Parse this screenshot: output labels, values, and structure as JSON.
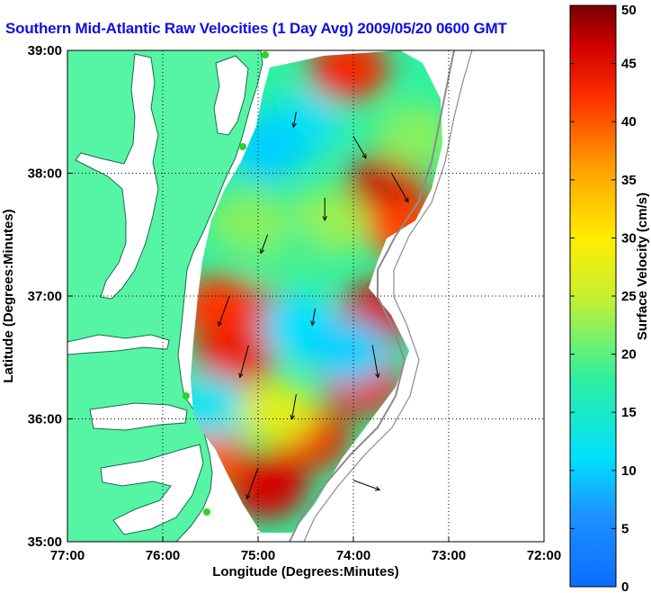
{
  "title": "Southern Mid-Atlantic Raw Velocities (1 Day Avg) 2009/05/20 0600 GMT",
  "colors": {
    "land": "#56f5a6",
    "title": "#1010e0"
  },
  "map": {
    "xlabel": "Longitude (Degrees:Minutes)",
    "ylabel": "Latitude (Degrees:Minutes)",
    "lon_range": [
      -77,
      -72
    ],
    "lat_range": [
      35,
      39
    ],
    "x_ticks": [
      {
        "value": -77,
        "label": "77:00"
      },
      {
        "value": -76,
        "label": "76:00"
      },
      {
        "value": -75,
        "label": "75:00"
      },
      {
        "value": -74,
        "label": "74:00"
      },
      {
        "value": -73,
        "label": "73:00"
      },
      {
        "value": -72,
        "label": "72:00"
      }
    ],
    "y_ticks": [
      {
        "value": 35,
        "label": "35:00"
      },
      {
        "value": 36,
        "label": "36:00"
      },
      {
        "value": 37,
        "label": "37:00"
      },
      {
        "value": 38,
        "label": "38:00"
      },
      {
        "value": 39,
        "label": "39:00"
      }
    ],
    "grid": true
  },
  "colorbar": {
    "label": "Surface Velocity (cm/s)",
    "range": [
      0,
      50
    ],
    "ticks": [
      {
        "value": 0,
        "label": "0"
      },
      {
        "value": 5,
        "label": "5"
      },
      {
        "value": 10,
        "label": "10"
      },
      {
        "value": 15,
        "label": "15"
      },
      {
        "value": 20,
        "label": "20"
      },
      {
        "value": 25,
        "label": "25"
      },
      {
        "value": 30,
        "label": "30"
      },
      {
        "value": 35,
        "label": "35"
      },
      {
        "value": 40,
        "label": "40"
      },
      {
        "value": 45,
        "label": "45"
      },
      {
        "value": 50,
        "label": "50"
      }
    ]
  },
  "field": {
    "blobs": [
      {
        "lon": -75.05,
        "lat": 36.8,
        "speed": 47
      },
      {
        "lon": -75.4,
        "lat": 36.9,
        "speed": 42
      },
      {
        "lon": -75.25,
        "lat": 36.5,
        "speed": 44
      },
      {
        "lon": -73.65,
        "lat": 37.9,
        "speed": 47
      },
      {
        "lon": -73.45,
        "lat": 37.55,
        "speed": 41
      },
      {
        "lon": -74.05,
        "lat": 38.85,
        "speed": 43
      },
      {
        "lon": -73.75,
        "lat": 36.85,
        "speed": 46
      },
      {
        "lon": -73.9,
        "lat": 36.3,
        "speed": 44
      },
      {
        "lon": -74.45,
        "lat": 35.85,
        "speed": 44
      },
      {
        "lon": -74.9,
        "lat": 35.45,
        "speed": 46
      },
      {
        "lon": -75.55,
        "lat": 35.7,
        "speed": 40
      },
      {
        "lon": -74.55,
        "lat": 38.4,
        "speed": 12
      },
      {
        "lon": -74.9,
        "lat": 38.2,
        "speed": 10
      },
      {
        "lon": -74.25,
        "lat": 37.6,
        "speed": 23
      },
      {
        "lon": -74.7,
        "lat": 37.35,
        "speed": 19
      },
      {
        "lon": -74.55,
        "lat": 36.75,
        "speed": 11
      },
      {
        "lon": -74.05,
        "lat": 36.55,
        "speed": 10
      },
      {
        "lon": -75.5,
        "lat": 36.1,
        "speed": 12
      },
      {
        "lon": -74.8,
        "lat": 36.05,
        "speed": 27
      },
      {
        "lon": -75.1,
        "lat": 37.6,
        "speed": 22
      },
      {
        "lon": -73.35,
        "lat": 38.3,
        "speed": 22
      }
    ],
    "vectors": [
      {
        "lon": -74.6,
        "lat": 38.5,
        "dir": 190,
        "speed": 12
      },
      {
        "lon": -74.0,
        "lat": 38.3,
        "dir": 150,
        "speed": 30
      },
      {
        "lon": -73.6,
        "lat": 38.0,
        "dir": 150,
        "speed": 45
      },
      {
        "lon": -74.3,
        "lat": 37.8,
        "dir": 180,
        "speed": 25
      },
      {
        "lon": -74.9,
        "lat": 37.5,
        "dir": 200,
        "speed": 20
      },
      {
        "lon": -75.3,
        "lat": 37.0,
        "dir": 200,
        "speed": 42
      },
      {
        "lon": -75.1,
        "lat": 36.6,
        "dir": 195,
        "speed": 45
      },
      {
        "lon": -74.4,
        "lat": 36.9,
        "dir": 190,
        "speed": 15
      },
      {
        "lon": -73.8,
        "lat": 36.6,
        "dir": 170,
        "speed": 44
      },
      {
        "lon": -74.6,
        "lat": 36.2,
        "dir": 190,
        "speed": 30
      },
      {
        "lon": -75.0,
        "lat": 35.6,
        "dir": 200,
        "speed": 44
      },
      {
        "lon": -74.0,
        "lat": 35.5,
        "dir": 110,
        "speed": 35
      }
    ]
  }
}
